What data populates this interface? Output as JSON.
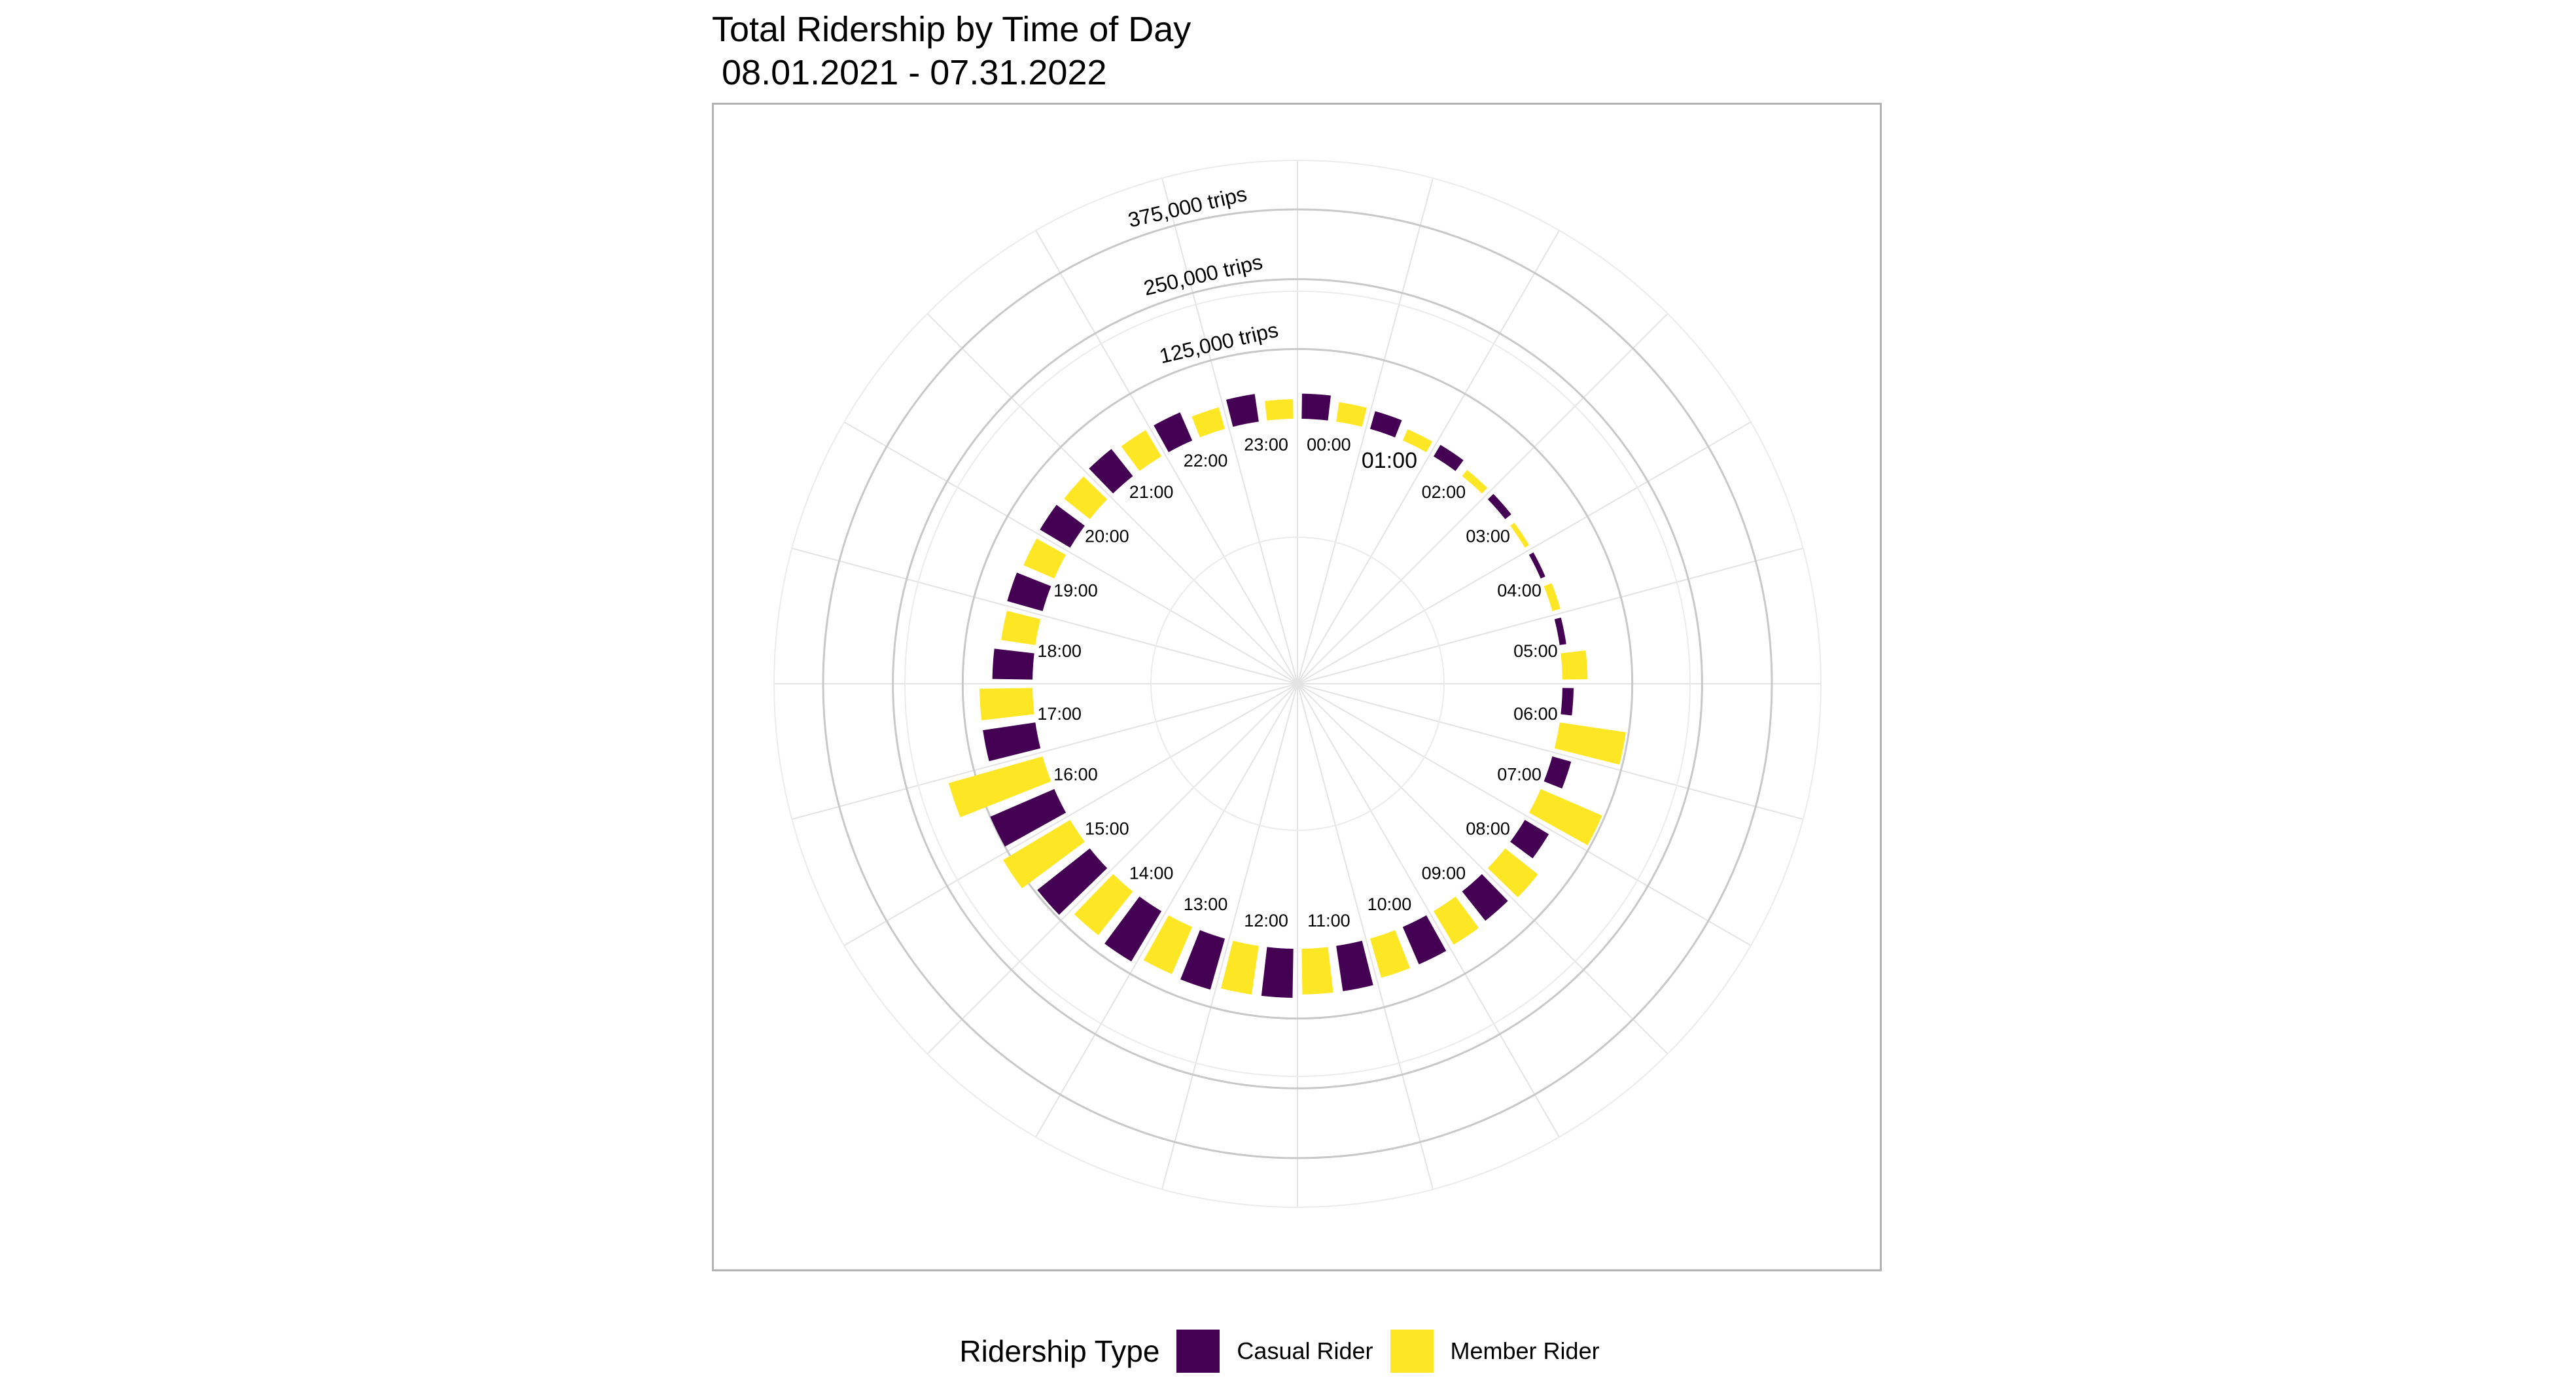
{
  "chart_data": {
    "type": "bar",
    "coord": "polar",
    "title": "Total Ridership by Time of Day\n 08.01.2021 - 07.31.2022",
    "categories": [
      "00:00",
      "01:00",
      "02:00",
      "03:00",
      "04:00",
      "05:00",
      "06:00",
      "07:00",
      "08:00",
      "09:00",
      "10:00",
      "11:00",
      "12:00",
      "13:00",
      "14:00",
      "15:00",
      "16:00",
      "17:00",
      "18:00",
      "19:00",
      "20:00",
      "21:00",
      "22:00",
      "23:00"
    ],
    "series": [
      {
        "name": "Casual Rider",
        "color": "#440154",
        "values": [
          45000,
          33000,
          24000,
          14000,
          9000,
          12000,
          20000,
          35000,
          50000,
          67000,
          73000,
          82000,
          88000,
          95000,
          105000,
          120000,
          125000,
          95000,
          72000,
          66000,
          63000,
          62000,
          55000,
          50000
        ]
      },
      {
        "name": "Member Rider",
        "color": "#FDE725",
        "values": [
          35000,
          22000,
          14000,
          9000,
          15000,
          45000,
          120000,
          120000,
          75000,
          70000,
          73000,
          82000,
          88000,
          92000,
          100000,
          140000,
          175000,
          95000,
          62000,
          60000,
          59000,
          55000,
          40000,
          35000
        ]
      }
    ],
    "radial_axis": {
      "ticks": [
        125000,
        250000,
        375000
      ],
      "tick_labels": [
        "125,000 trips",
        "250,000 trips",
        "375,000 trips"
      ]
    },
    "legend": {
      "title": "Ridership Type",
      "position": "bottom",
      "labels": [
        "Casual Rider",
        "Member Rider"
      ]
    },
    "grid": true
  }
}
